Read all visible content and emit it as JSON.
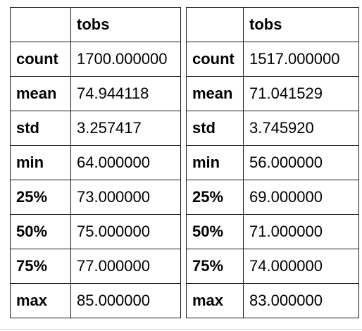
{
  "tables": [
    {
      "column_header": "tobs",
      "rows": [
        {
          "label": "count",
          "value": "1700.000000"
        },
        {
          "label": "mean",
          "value": "74.944118"
        },
        {
          "label": "std",
          "value": "3.257417"
        },
        {
          "label": "min",
          "value": "64.000000"
        },
        {
          "label": "25%",
          "value": "73.000000"
        },
        {
          "label": "50%",
          "value": "75.000000"
        },
        {
          "label": "75%",
          "value": "77.000000"
        },
        {
          "label": "max",
          "value": "85.000000"
        }
      ]
    },
    {
      "column_header": "tobs",
      "rows": [
        {
          "label": "count",
          "value": "1517.000000"
        },
        {
          "label": "mean",
          "value": "71.041529"
        },
        {
          "label": "std",
          "value": "3.745920"
        },
        {
          "label": "min",
          "value": "56.000000"
        },
        {
          "label": "25%",
          "value": "69.000000"
        },
        {
          "label": "50%",
          "value": "71.000000"
        },
        {
          "label": "75%",
          "value": "74.000000"
        },
        {
          "label": "max",
          "value": "83.000000"
        }
      ]
    }
  ]
}
